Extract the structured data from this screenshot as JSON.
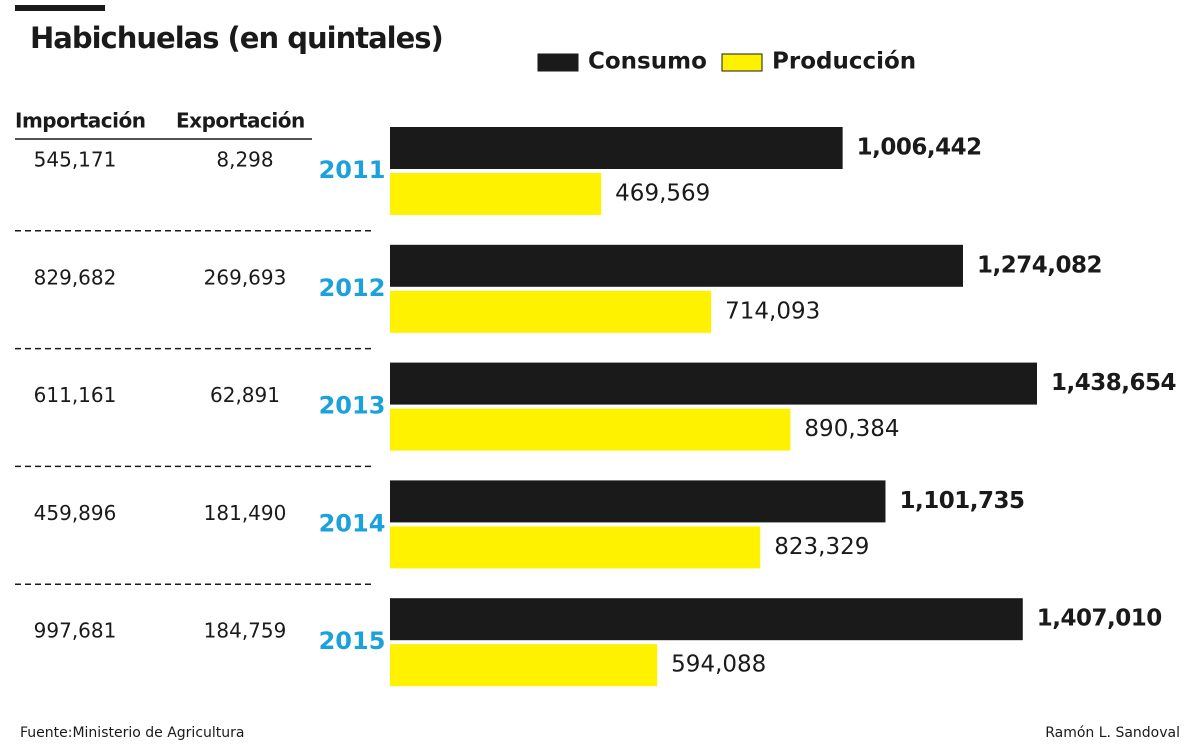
{
  "chart_data": {
    "type": "hbar",
    "title": "Habichuelas (en quintales)",
    "categories": [
      "2011",
      "2012",
      "2013",
      "2014",
      "2015"
    ],
    "series": [
      {
        "name": "Consumo",
        "color": "#1a1a1a",
        "values": [
          1006442,
          1274082,
          1438654,
          1101735,
          1407010
        ],
        "value_labels": [
          "1,006,442",
          "1,274,082",
          "1,438,654",
          "1,101,735",
          "1,407,010"
        ]
      },
      {
        "name": "Producción",
        "color": "#fff200",
        "values": [
          469569,
          714093,
          890384,
          823329,
          594088
        ],
        "value_labels": [
          "469,569",
          "714,093",
          "890,384",
          "823,329",
          "594,088"
        ]
      }
    ]
  },
  "table": {
    "columns": [
      "Importación",
      "Exportación"
    ],
    "rows": [
      [
        "545,171",
        "8,298"
      ],
      [
        "829,682",
        "269,693"
      ],
      [
        "611,161",
        "62,891"
      ],
      [
        "459,896",
        "181,490"
      ],
      [
        "997,681",
        "184,759"
      ]
    ]
  },
  "footer": {
    "source": "Fuente:Ministerio de Agricultura",
    "author": "Ramón L. Sandoval"
  }
}
